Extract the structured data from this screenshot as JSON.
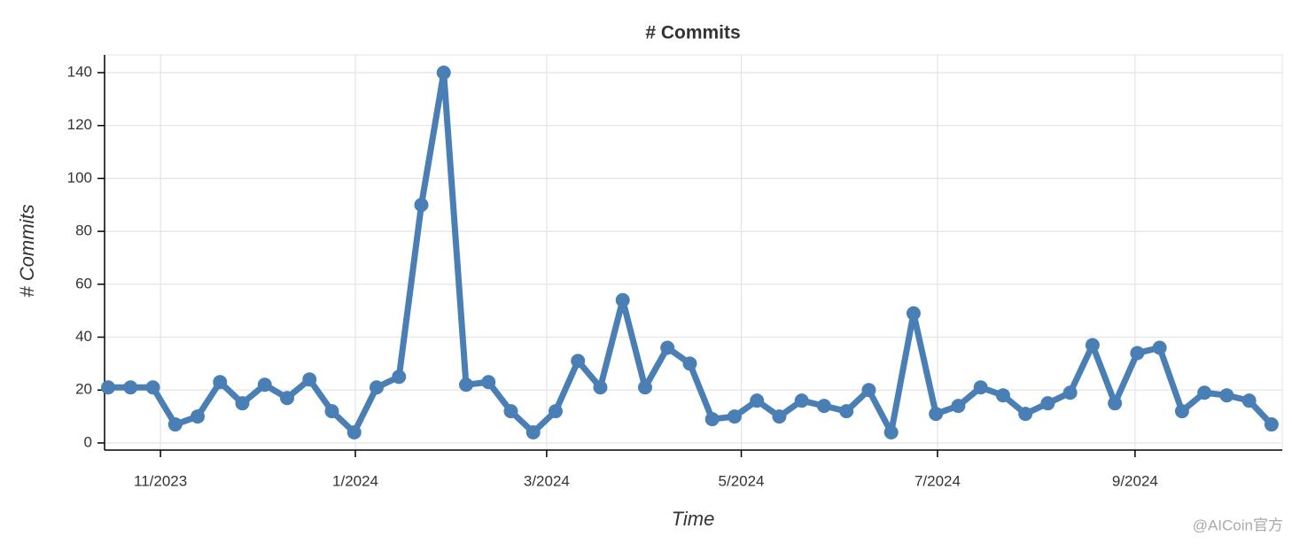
{
  "chart_data": {
    "type": "line",
    "title": "# Commits",
    "x_label": "Time",
    "y_label": "# Commits",
    "watermark": "@AICoin官方",
    "categories": [
      null,
      null,
      null,
      null,
      null,
      null,
      null,
      null,
      null,
      null,
      null,
      null,
      null,
      null,
      null,
      null,
      null,
      null,
      null,
      null,
      null,
      null,
      null,
      null,
      null,
      null,
      null,
      null,
      null,
      null,
      null,
      null,
      null,
      null,
      null,
      null,
      null,
      null,
      null,
      null,
      null,
      null,
      null,
      null,
      null,
      null,
      null,
      null,
      null,
      null,
      null,
      null,
      null
    ],
    "series": [
      {
        "name": "# Commits",
        "color": "#4a7fb5",
        "values": [
          21,
          21,
          21,
          7,
          10,
          23,
          15,
          22,
          17,
          24,
          12,
          4,
          21,
          25,
          90,
          140,
          22,
          23,
          12,
          4,
          12,
          31,
          21,
          54,
          21,
          36,
          30,
          9,
          10,
          16,
          10,
          16,
          14,
          12,
          20,
          4,
          49,
          11,
          14,
          21,
          18,
          11,
          15,
          19,
          37,
          15,
          34,
          36,
          12,
          19,
          18,
          16,
          7
        ]
      }
    ],
    "xlim": [
      -0.16,
      52.48
    ],
    "xticks": [
      {
        "value": 2.34,
        "label": "11/2023"
      },
      {
        "value": 11.05,
        "label": "1/2024"
      },
      {
        "value": 19.6,
        "label": "3/2024"
      },
      {
        "value": 28.3,
        "label": "5/2024"
      },
      {
        "value": 37.07,
        "label": "7/2024"
      },
      {
        "value": 45.9,
        "label": "9/2024"
      }
    ],
    "ylim": [
      -2.7,
      146.7
    ],
    "yticks": [
      0,
      20,
      40,
      60,
      80,
      100,
      120,
      140
    ],
    "grid": true
  }
}
